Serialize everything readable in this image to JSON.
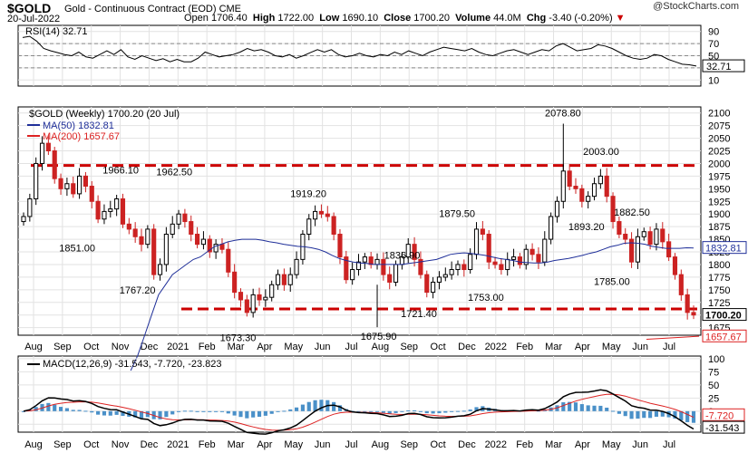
{
  "header": {
    "symbol": "$GOLD",
    "name": "Gold - Continuous Contract (EOD)",
    "exchange": "CME",
    "date": "20-Jul-2022",
    "open_label": "Open",
    "open": "1706.40",
    "high_label": "High",
    "high": "1722.00",
    "low_label": "Low",
    "low": "1690.10",
    "close_label": "Close",
    "close": "1700.20",
    "volume_label": "Volume",
    "volume": "44.0M",
    "chg_label": "Chg",
    "chg": "-3.40 (-0.20%)",
    "credit": "@StockCharts.com"
  },
  "colors": {
    "up": "#000000",
    "down": "#cc2222",
    "ma50": "#1f2f99",
    "ma200": "#dd2222",
    "macd": "#000000",
    "signal": "#dd2222",
    "hist": "#4a90c8",
    "resistance": "#cc0000"
  },
  "x_labels": [
    "Aug",
    "Sep",
    "Oct",
    "Nov",
    "Dec",
    "2021",
    "Feb",
    "Mar",
    "Apr",
    "May",
    "Jun",
    "Jul",
    "Aug",
    "Sep",
    "Oct",
    "Dec",
    "2022",
    "Feb",
    "Mar",
    "Apr",
    "May",
    "Jun",
    "Jul"
  ],
  "chart_data": [
    {
      "type": "line",
      "panel": "rsi",
      "label": "RSI(14) 32.71",
      "yticks": [
        10,
        30,
        50,
        70,
        90
      ],
      "ylim": [
        0,
        100
      ],
      "reference_lines": [
        30,
        50,
        70
      ],
      "last_value": "32.71",
      "values": [
        80,
        82,
        74,
        62,
        58,
        55,
        52,
        50,
        56,
        48,
        46,
        52,
        58,
        52,
        60,
        48,
        44,
        50,
        46,
        42,
        45,
        40,
        44,
        40,
        40,
        46,
        56,
        52,
        48,
        50,
        52,
        56,
        62,
        58,
        60,
        56,
        50,
        48,
        52,
        46,
        50,
        55,
        60,
        56,
        60,
        52,
        48,
        50,
        54,
        50,
        48,
        52,
        50,
        56,
        52,
        58,
        54,
        50,
        56,
        60,
        64,
        62,
        60,
        58,
        62,
        56,
        52,
        50,
        54,
        58,
        60,
        56,
        52,
        56,
        60,
        58,
        66,
        70,
        64,
        58,
        60,
        62,
        68,
        66,
        62,
        56,
        50,
        46,
        44,
        46,
        52,
        50,
        44,
        40,
        36,
        35,
        33
      ]
    },
    {
      "type": "candlestick",
      "panel": "price",
      "label": "$GOLD (Weekly) 1700.20 (20 Jul)",
      "yticks": [
        1675,
        1700,
        1725,
        1750,
        1775,
        1800,
        1825,
        1850,
        1875,
        1900,
        1925,
        1950,
        1975,
        2000,
        2025,
        2050,
        2075,
        2100
      ],
      "ylim": [
        1660,
        2112
      ],
      "last_value": "1700.20",
      "series": [
        {
          "name": "MA(50)",
          "label": "MA(50) 1832.81",
          "last": "1832.81"
        },
        {
          "name": "MA(200)",
          "label": "MA(200) 1657.67",
          "last": "1657.67"
        }
      ],
      "close_series": [
        1895,
        1930,
        2000,
        2040,
        2025,
        1970,
        1950,
        1960,
        1940,
        1975,
        1955,
        1925,
        1890,
        1905,
        1910,
        1930,
        1880,
        1870,
        1855,
        1840,
        1870,
        1780,
        1800,
        1860,
        1880,
        1900,
        1885,
        1860,
        1840,
        1850,
        1825,
        1840,
        1830,
        1785,
        1745,
        1730,
        1705,
        1740,
        1730,
        1735,
        1760,
        1780,
        1760,
        1780,
        1810,
        1860,
        1890,
        1905,
        1900,
        1895,
        1860,
        1815,
        1770,
        1790,
        1805,
        1815,
        1800,
        1810,
        1780,
        1765,
        1800,
        1815,
        1840,
        1810,
        1780,
        1745,
        1765,
        1775,
        1780,
        1790,
        1800,
        1790,
        1820,
        1870,
        1860,
        1805,
        1800,
        1790,
        1810,
        1815,
        1800,
        1830,
        1820,
        1805,
        1850,
        1895,
        1925,
        1985,
        1955,
        1950,
        1925,
        1935,
        1960,
        1975,
        1935,
        1885,
        1860,
        1850,
        1805,
        1855,
        1865,
        1840,
        1870,
        1845,
        1815,
        1780,
        1740,
        1705,
        1700
      ],
      "ma50_series": [
        1590,
        1620,
        1660,
        1700,
        1740,
        1760,
        1780,
        1790,
        1800,
        1810,
        1815,
        1825,
        1835,
        1840,
        1845,
        1848,
        1850,
        1850,
        1850,
        1848,
        1845,
        1843,
        1840,
        1838,
        1836,
        1835,
        1833,
        1830,
        1825,
        1818,
        1812,
        1808,
        1805,
        1803,
        1802,
        1800,
        1800,
        1800,
        1800,
        1800,
        1802,
        1804,
        1806,
        1808,
        1810,
        1815,
        1820,
        1822,
        1823,
        1822,
        1820,
        1818,
        1815,
        1812,
        1810,
        1808,
        1805,
        1804,
        1803,
        1803,
        1805,
        1808,
        1810,
        1812,
        1815,
        1818,
        1822,
        1825,
        1830,
        1835,
        1838,
        1842,
        1843,
        1842,
        1840,
        1836,
        1834,
        1832,
        1832,
        1832,
        1833,
        1832.81
      ]
    },
    {
      "type": "line",
      "panel": "macd",
      "label": "MACD(12,26,9) -31.543, -7.720, -23.823",
      "series": [
        {
          "name": "MACD(12,26,9)",
          "last": "-31.543"
        },
        {
          "name": "signal",
          "last": "-7.720"
        },
        {
          "name": "histogram",
          "last": "-23.823"
        }
      ],
      "yticks": [
        -25,
        0,
        25,
        50,
        75,
        100
      ],
      "ylim": [
        -40,
        105
      ]
    }
  ],
  "annotations": [
    {
      "text": "2078.80",
      "price": 2078.8,
      "at": 0.805
    },
    {
      "text": "2003.00",
      "price": 2003,
      "at": 0.862
    },
    {
      "text": "1966.10",
      "price": 1966.1,
      "at": 0.145
    },
    {
      "text": "1962.50",
      "price": 1962.5,
      "at": 0.225
    },
    {
      "text": "1919.20",
      "price": 1919.2,
      "at": 0.425
    },
    {
      "text": "1893.20",
      "price": 1893.2,
      "at": 0.84
    },
    {
      "text": "1882.50",
      "price": 1882.5,
      "at": 0.908
    },
    {
      "text": "1879.50",
      "price": 1879.5,
      "at": 0.647
    },
    {
      "text": "1851.00",
      "price": 1851,
      "at": 0.08
    },
    {
      "text": "1836.90",
      "price": 1836.9,
      "at": 0.565
    },
    {
      "text": "1785.00",
      "price": 1785,
      "at": 0.878
    },
    {
      "text": "1767.20",
      "price": 1767.2,
      "at": 0.17
    },
    {
      "text": "1753.00",
      "price": 1753,
      "at": 0.69
    },
    {
      "text": "1721.40",
      "price": 1721.4,
      "at": 0.59
    },
    {
      "text": "1673.30",
      "price": 1673.3,
      "at": 0.32
    },
    {
      "text": "1675.90",
      "price": 1675.9,
      "at": 0.53
    }
  ],
  "resistance_lines": [
    {
      "price": 1996
    },
    {
      "price": 1712
    }
  ]
}
